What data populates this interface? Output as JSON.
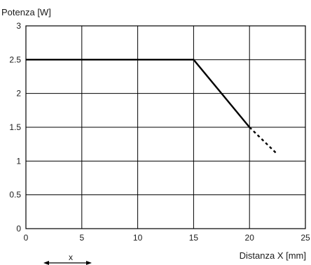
{
  "chart_data": {
    "type": "line",
    "ylabel": "Potenza [W]",
    "xlabel": "Distanza X [mm]",
    "xlim": [
      0,
      25
    ],
    "ylim": [
      0,
      3
    ],
    "x_ticks": [
      "0",
      "5",
      "10",
      "15",
      "20",
      "25"
    ],
    "y_ticks": [
      "0",
      "0.5",
      "1",
      "1.5",
      "2",
      "2.5",
      "3"
    ],
    "grid": true,
    "series": [
      {
        "style": "solid",
        "x": [
          0,
          15,
          20
        ],
        "y": [
          2.5,
          2.5,
          1.5
        ]
      },
      {
        "style": "dotted",
        "x": [
          20,
          22.5
        ],
        "y": [
          1.5,
          1.1
        ]
      }
    ]
  },
  "diagram": {
    "dimension_label": "x"
  }
}
